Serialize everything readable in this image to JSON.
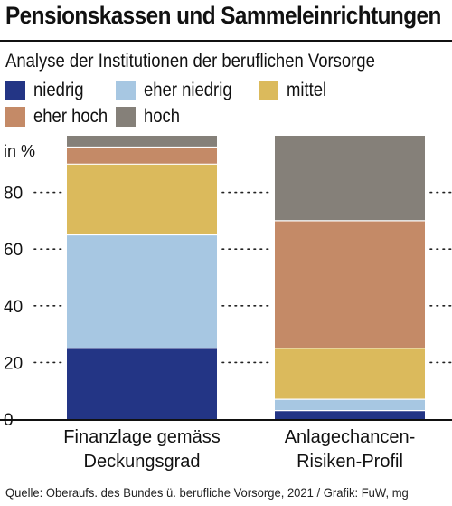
{
  "title": "Pensionskassen und Sammeleinrichtungen",
  "subtitle": "Analyse der Institutionen der beruflichen Vorsorge",
  "source": "Quelle: Oberaufs. des Bundes ü. berufliche Vorsorge, 2021 / Grafik: FuW, mg",
  "legend": [
    {
      "label": "niedrig",
      "color": "#233585"
    },
    {
      "label": "eher niedrig",
      "color": "#a7c7e2"
    },
    {
      "label": "mittel",
      "color": "#dbba5c"
    },
    {
      "label": "eher hoch",
      "color": "#c48a67"
    },
    {
      "label": "hoch",
      "color": "#858079"
    }
  ],
  "chart_data": {
    "type": "bar",
    "stacked": true,
    "unit_label": "in %",
    "ylim": [
      0,
      100
    ],
    "yticks": [
      0,
      20,
      40,
      60,
      80
    ],
    "grid": "dotted",
    "categories": [
      [
        "Finanzlage gemäss",
        "Deckungsgrad"
      ],
      [
        "Anlagechancen-",
        "Risiken-Profil"
      ]
    ],
    "series": [
      {
        "name": "niedrig",
        "color": "#233585",
        "values": [
          25,
          3
        ]
      },
      {
        "name": "eher niedrig",
        "color": "#a7c7e2",
        "values": [
          40,
          4
        ]
      },
      {
        "name": "mittel",
        "color": "#dbba5c",
        "values": [
          25,
          18
        ]
      },
      {
        "name": "eher hoch",
        "color": "#c48a67",
        "values": [
          6,
          45
        ]
      },
      {
        "name": "hoch",
        "color": "#858079",
        "values": [
          4,
          30
        ]
      }
    ]
  }
}
